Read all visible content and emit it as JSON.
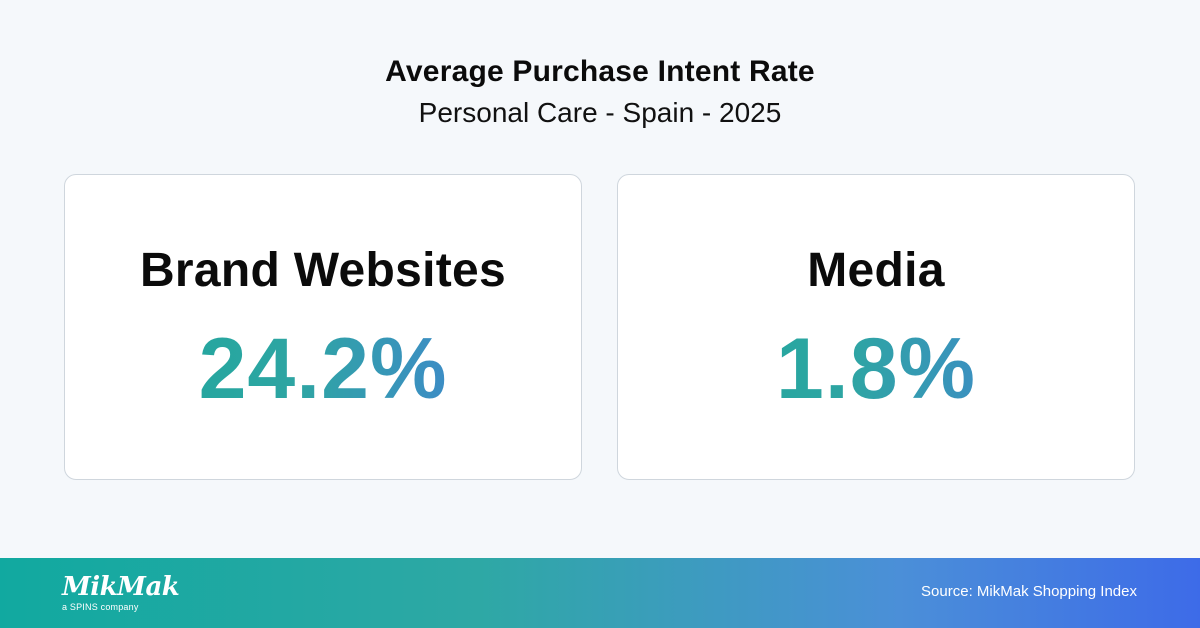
{
  "header": {
    "title": "Average Purchase Intent Rate",
    "subtitle": "Personal Care - Spain - 2025"
  },
  "cards": [
    {
      "label": "Brand Websites",
      "value": "24.2%"
    },
    {
      "label": "Media",
      "value": "1.8%"
    }
  ],
  "footer": {
    "logo_word": "MikMak",
    "logo_tagline": "a SPINS company",
    "source": "Source: MikMak Shopping Index"
  },
  "colors": {
    "background": "#f5f8fb",
    "value_gradient_start": "#1aa89a",
    "value_gradient_end": "#4a77e3",
    "footer_gradient_start": "#11a9a0",
    "footer_gradient_end": "#3d6be8"
  }
}
